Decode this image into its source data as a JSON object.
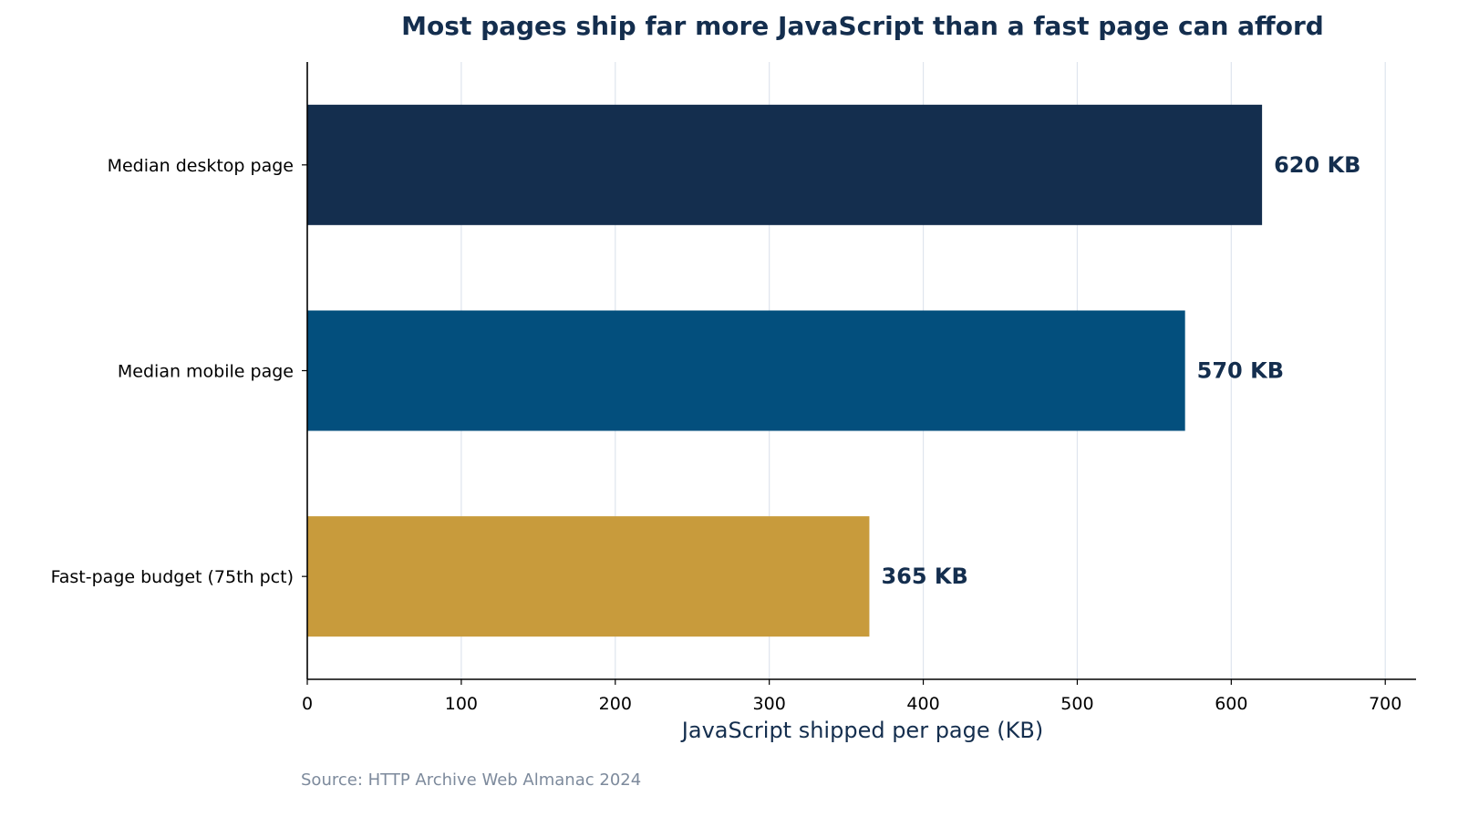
{
  "chart_data": {
    "type": "bar",
    "orientation": "horizontal",
    "title": "Most pages ship far more JavaScript than a fast page can afford",
    "xlabel": "JavaScript shipped per page (KB)",
    "ylabel": "",
    "xlim": [
      0,
      720
    ],
    "xticks": [
      0,
      100,
      200,
      300,
      400,
      500,
      600,
      700
    ],
    "categories": [
      "Median desktop page",
      "Median mobile page",
      "Fast-page budget (75th pct)"
    ],
    "values": [
      620,
      570,
      365
    ],
    "value_labels": [
      "620 KB",
      "570 KB",
      "365 KB"
    ],
    "bar_colors": [
      "#142e4e",
      "#034f7d",
      "#c89b3c"
    ],
    "grid": "vertical",
    "legend": "none",
    "source": "Source: HTTP Archive Web Almanac 2024"
  },
  "colors": {
    "title": "#142e4e",
    "axis_title": "#142e4e",
    "data_label": "#142e4e",
    "grid": "#dfe5ee",
    "axis": "#000000",
    "source": "#7d8a9c"
  }
}
